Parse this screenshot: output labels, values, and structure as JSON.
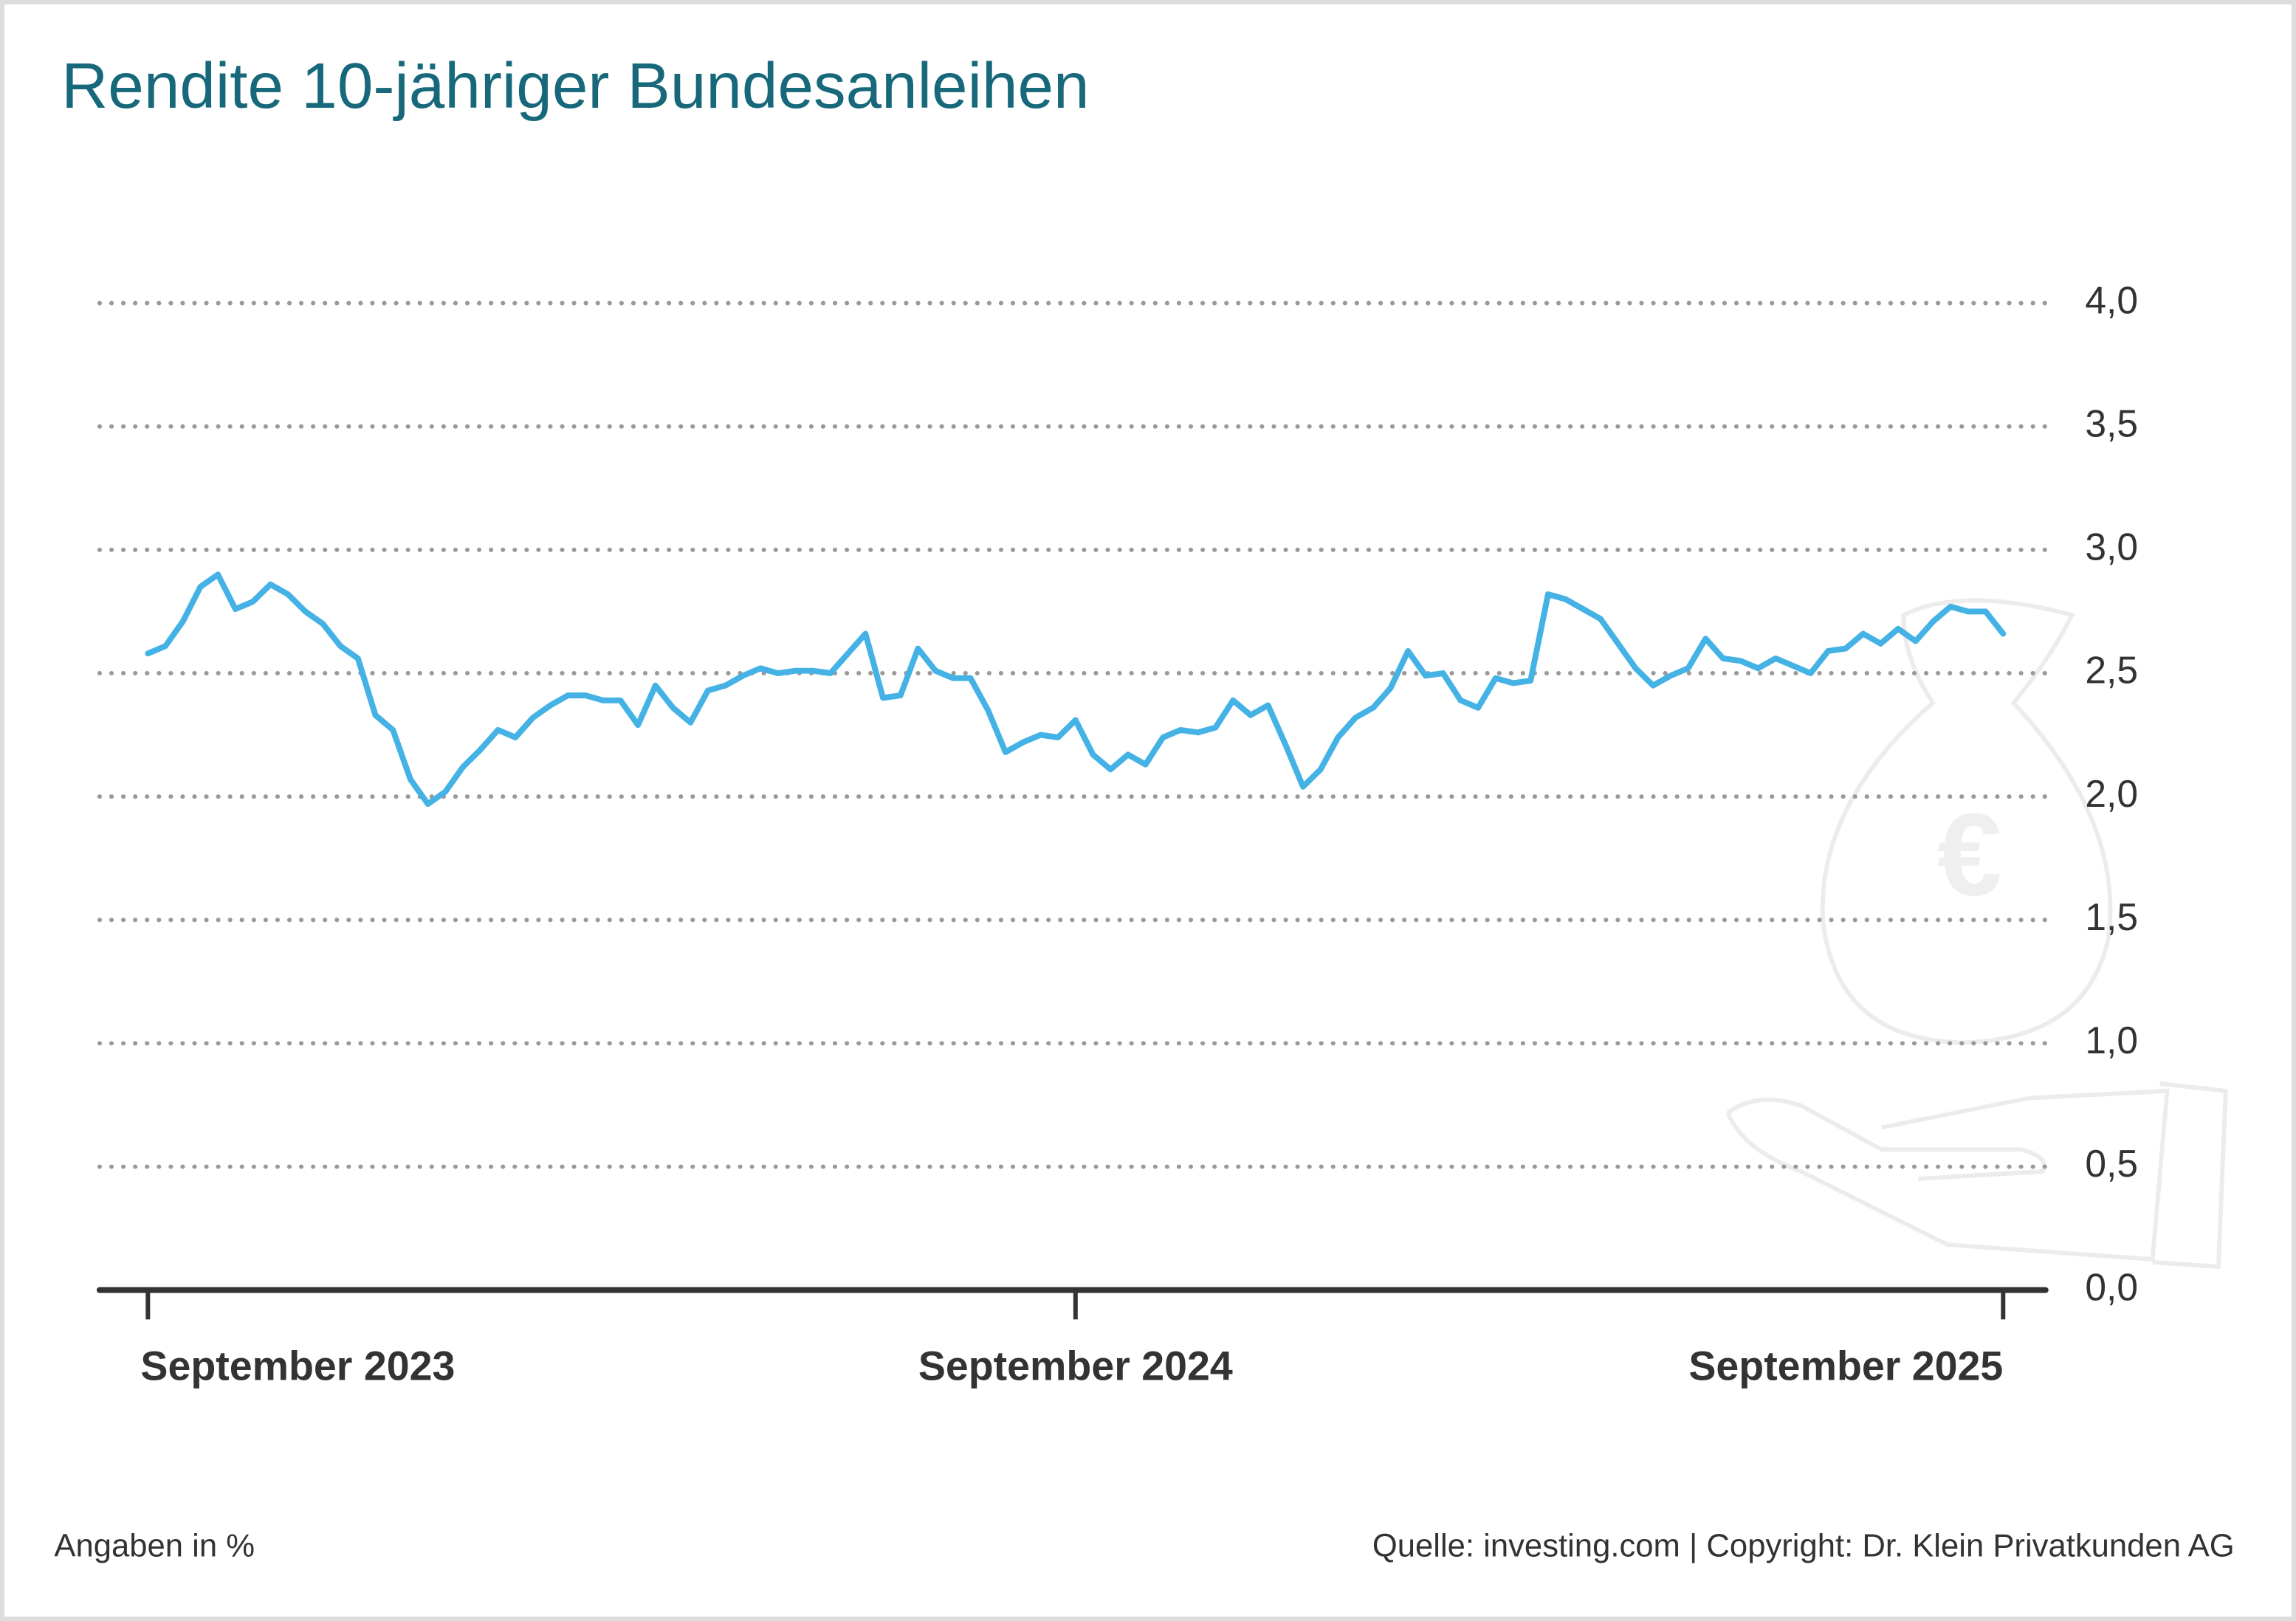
{
  "chart_data": {
    "type": "line",
    "title": "Rendite 10-jähriger Bundesanleihen",
    "categories": [
      "September 2023",
      null,
      null,
      null,
      null,
      null,
      null,
      null,
      null,
      null,
      null,
      null,
      null,
      null,
      null,
      null,
      null,
      null,
      null,
      null,
      null,
      null,
      null,
      null,
      null,
      null,
      null,
      null,
      null,
      null,
      null,
      null,
      null,
      null,
      null,
      null,
      null,
      null,
      null,
      null,
      null,
      null,
      null,
      null,
      null,
      null,
      null,
      null,
      null,
      null,
      null,
      null,
      null,
      "September 2024",
      null,
      null,
      null,
      null,
      null,
      null,
      null,
      null,
      null,
      null,
      null,
      null,
      null,
      null,
      null,
      null,
      null,
      null,
      null,
      null,
      null,
      null,
      null,
      null,
      null,
      null,
      null,
      null,
      null,
      null,
      null,
      null,
      null,
      null,
      null,
      null,
      null,
      null,
      null,
      null,
      null,
      null,
      null,
      null,
      null,
      null,
      null,
      null,
      null,
      null,
      null,
      null,
      "September 2025"
    ],
    "values": [
      2.58,
      2.61,
      2.71,
      2.85,
      2.9,
      2.76,
      2.79,
      2.86,
      2.82,
      2.75,
      2.7,
      2.61,
      2.56,
      2.33,
      2.27,
      2.07,
      1.97,
      2.02,
      2.12,
      2.19,
      2.27,
      2.24,
      2.32,
      2.37,
      2.41,
      2.41,
      2.39,
      2.39,
      2.29,
      2.45,
      2.36,
      2.3,
      2.43,
      2.45,
      2.49,
      2.52,
      2.5,
      2.51,
      2.51,
      2.5,
      2.58,
      2.66,
      2.4,
      2.41,
      2.6,
      2.51,
      2.48,
      2.48,
      2.35,
      2.18,
      2.22,
      2.25,
      2.24,
      2.31,
      2.17,
      2.11,
      2.17,
      2.13,
      2.24,
      2.27,
      2.26,
      2.28,
      2.39,
      2.33,
      2.37,
      2.21,
      2.04,
      2.11,
      2.24,
      2.32,
      2.36,
      2.44,
      2.59,
      2.49,
      2.5,
      2.39,
      2.36,
      2.48,
      2.46,
      2.47,
      2.82,
      2.8,
      2.76,
      2.72,
      2.62,
      2.52,
      2.45,
      2.49,
      2.52,
      2.64,
      2.56,
      2.55,
      2.52,
      2.56,
      2.53,
      2.5,
      2.59,
      2.6,
      2.66,
      2.62,
      2.68,
      2.63,
      2.71,
      2.77,
      2.75,
      2.75,
      2.66
    ],
    "color": "#45b2e5",
    "ylim": [
      0,
      4
    ],
    "yticks": [
      {
        "value": 0,
        "label": "0,0"
      },
      {
        "value": 0.5,
        "label": "0,5"
      },
      {
        "value": 1,
        "label": "1,0"
      },
      {
        "value": 1.5,
        "label": "1,5"
      },
      {
        "value": 2,
        "label": "2,0"
      },
      {
        "value": 2.5,
        "label": "2,5"
      },
      {
        "value": 3,
        "label": "3,0"
      },
      {
        "value": 3.5,
        "label": "3,5"
      },
      {
        "value": 4,
        "label": "4,0"
      }
    ],
    "grid": true,
    "note": "Angaben in %",
    "source": "Quelle: investing.com | Copyright: Dr. Klein Privatkunden AG"
  }
}
